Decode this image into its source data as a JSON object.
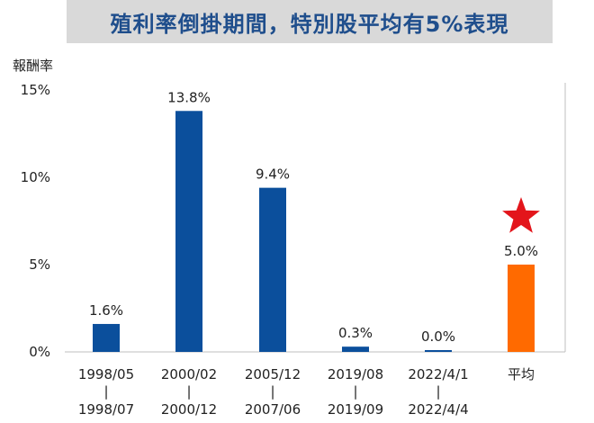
{
  "title": "殖利率倒掛期間，特別股平均有5%表現",
  "y_unit_label": "報酬率",
  "colors": {
    "title_banner_bg": "#d9d9d9",
    "title_text": "#1f4e8c",
    "bar_primary": "#0b4f9c",
    "bar_average": "#ff6a00",
    "star": "#e3151b",
    "axis": "#bfbfbf"
  },
  "chart_data": {
    "type": "bar",
    "title": "殖利率倒掛期間，特別股平均有5%表現",
    "ylabel": "報酬率",
    "xlabel": "",
    "ylim": [
      0,
      15
    ],
    "yticks": [
      {
        "value": 0,
        "label": "0%"
      },
      {
        "value": 5,
        "label": "5%"
      },
      {
        "value": 10,
        "label": "10%"
      },
      {
        "value": 15,
        "label": "15%"
      }
    ],
    "grid": false,
    "categories": [
      {
        "start": "1998/05",
        "sep": "|",
        "end": "1998/07"
      },
      {
        "start": "2000/02",
        "sep": "|",
        "end": "2000/12"
      },
      {
        "start": "2005/12",
        "sep": "|",
        "end": "2007/06"
      },
      {
        "start": "2019/08",
        "sep": "|",
        "end": "2019/09"
      },
      {
        "start": "2022/4/1",
        "sep": "|",
        "end": "2022/4/4"
      },
      {
        "start": "平均",
        "sep": "",
        "end": ""
      }
    ],
    "values": [
      1.6,
      13.8,
      9.4,
      0.3,
      0.0,
      5.0
    ],
    "value_labels": [
      "1.6%",
      "13.8%",
      "9.4%",
      "0.3%",
      "0.0%",
      "5.0%"
    ],
    "highlight_index": 5,
    "highlight_marker": "star-icon"
  }
}
